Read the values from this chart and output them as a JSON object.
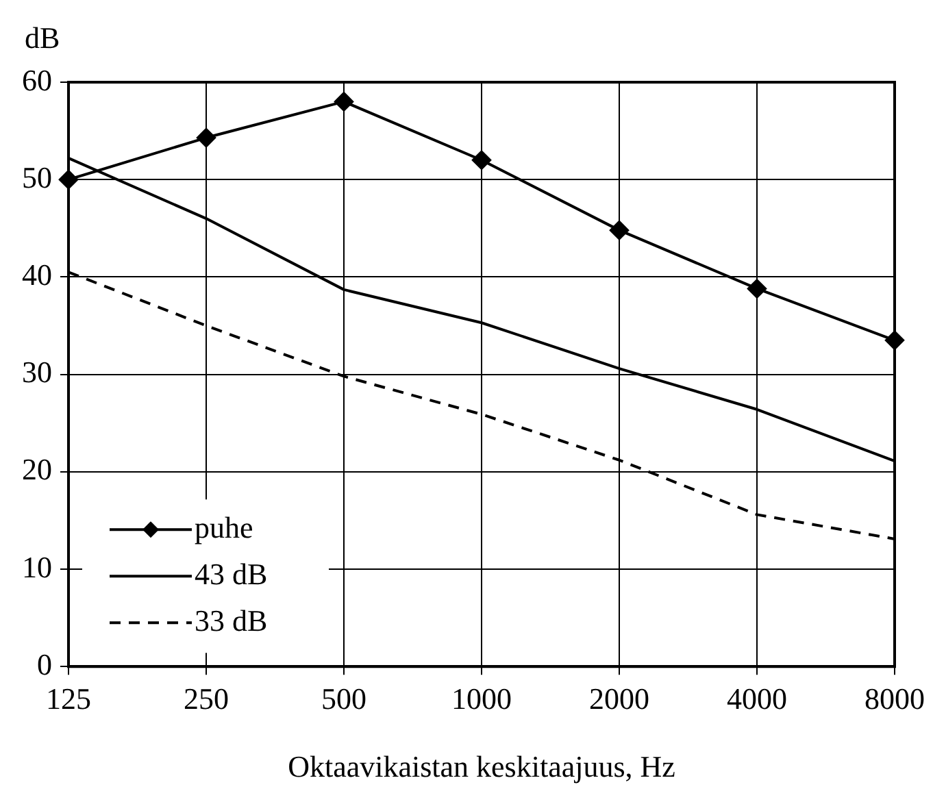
{
  "chart_data": {
    "type": "line",
    "ylabel": "dB",
    "xlabel": "Oktaavikaistan keskitaajuus, Hz",
    "categories": [
      "125",
      "250",
      "500",
      "1000",
      "2000",
      "4000",
      "8000"
    ],
    "ylim": [
      0,
      60
    ],
    "yticks": [
      0,
      10,
      20,
      30,
      40,
      50,
      60
    ],
    "grid": true,
    "legend": "bottom left",
    "series": [
      {
        "name": "puhe",
        "color": "#000000",
        "marker": "diamond",
        "line_style": "solid",
        "values": [
          50,
          54.3,
          58,
          52,
          44.8,
          38.8,
          33.5
        ]
      },
      {
        "name": "43 dB",
        "color": "#000000",
        "marker": "none",
        "line_style": "solid",
        "values": [
          52.2,
          46,
          38.7,
          35.3,
          30.6,
          26.4,
          21.1
        ]
      },
      {
        "name": "33 dB",
        "color": "#000000",
        "marker": "none",
        "line_style": "dashed",
        "values": [
          40.5,
          35,
          29.8,
          25.9,
          21.2,
          15.6,
          13.1
        ]
      }
    ]
  }
}
